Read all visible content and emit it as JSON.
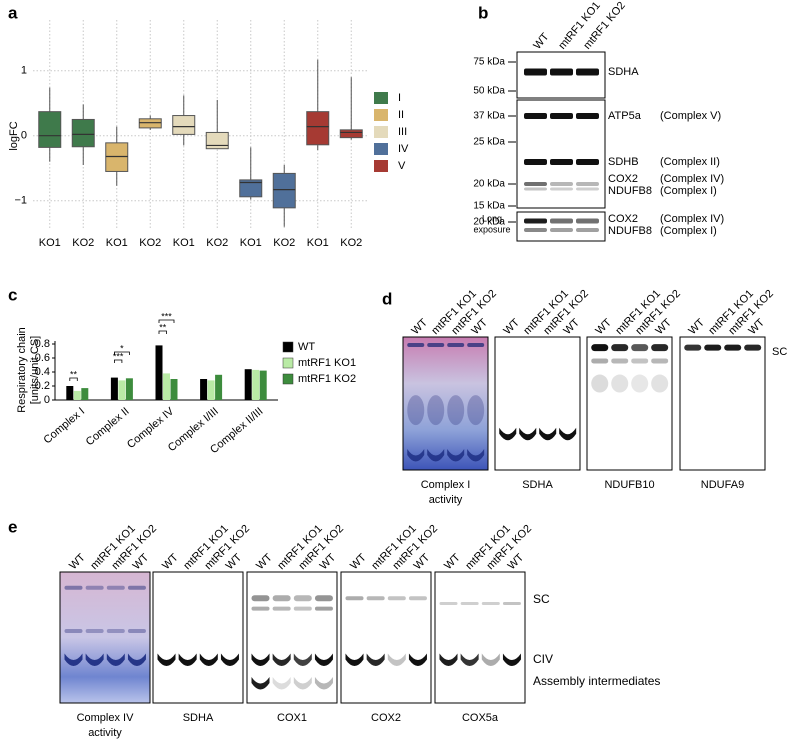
{
  "panel_labels": [
    "a",
    "b",
    "c",
    "d",
    "e"
  ],
  "chart_data": [
    {
      "type": "box",
      "ylabel": "logFC",
      "categories": [
        "KO1",
        "KO2"
      ],
      "ylim": [
        -1.42,
        1.78
      ],
      "yticks": [
        {
          "value": -1,
          "label": "−1"
        },
        0,
        1
      ],
      "grid": true,
      "series": [
        {
          "name": "I",
          "color": "#3f7a4b",
          "values": [
            {
              "low": -0.4,
              "q1": -0.18,
              "median": 0,
              "q3": 0.37,
              "high": 0.74
            },
            {
              "low": -0.45,
              "q1": -0.17,
              "median": 0.02,
              "q3": 0.25,
              "high": 0.48
            }
          ]
        },
        {
          "name": "II",
          "color": "#d9b56c",
          "values": [
            {
              "low": -0.77,
              "q1": -0.55,
              "median": -0.32,
              "q3": -0.11,
              "high": 0.14
            },
            {
              "low": 0.09,
              "q1": 0.12,
              "median": 0.2,
              "q3": 0.26,
              "high": 0.31
            }
          ]
        },
        {
          "name": "III",
          "color": "#e4dabb",
          "values": [
            {
              "low": -0.15,
              "q1": 0.02,
              "median": 0.14,
              "q3": 0.31,
              "high": 0.62
            },
            {
              "low": -0.2,
              "q1": -0.2,
              "median": -0.15,
              "q3": 0.05,
              "high": 0.55
            }
          ]
        },
        {
          "name": "IV",
          "color": "#50709a",
          "values": [
            {
              "low": -0.98,
              "q1": -0.94,
              "median": -0.72,
              "q3": -0.68,
              "high": -0.18
            },
            {
              "low": -1.4,
              "q1": -1.11,
              "median": -0.83,
              "q3": -0.58,
              "high": -0.45
            }
          ]
        },
        {
          "name": "V",
          "color": "#a63a33",
          "values": [
            {
              "low": -0.22,
              "q1": -0.14,
              "median": 0.14,
              "q3": 0.37,
              "high": 1.17
            },
            {
              "low": -0.06,
              "q1": -0.03,
              "median": 0.05,
              "q3": 0.09,
              "high": 0.9
            }
          ]
        }
      ]
    },
    {
      "type": "bar",
      "ylabel": [
        "Respiratory chain",
        "[units/unit CS]"
      ],
      "categories": [
        "Complex I",
        "Complex II",
        "Complex IV",
        "Complex I/III",
        "Complex II/III"
      ],
      "ylim": [
        0,
        0.9
      ],
      "yticks": [
        0,
        0.2,
        0.4,
        0.6,
        0.8
      ],
      "series": [
        {
          "name": "WT",
          "color": "#000000",
          "values": [
            0.2,
            0.32,
            0.78,
            0.3,
            0.44
          ]
        },
        {
          "name": "mtRF1 KO1",
          "color": "#b9eaa5",
          "values": [
            0.13,
            0.28,
            0.38,
            0.28,
            0.43
          ]
        },
        {
          "name": "mtRF1 KO2",
          "color": "#3d8c3d",
          "values": [
            0.17,
            0.31,
            0.3,
            0.36,
            0.42
          ]
        }
      ],
      "annotations": [
        "**",
        "***",
        "*",
        "**",
        "***"
      ]
    }
  ],
  "blot_b": {
    "lanes": [
      "WT",
      "mtRF1 KO1",
      "mtRF1 KO2"
    ],
    "markers": [
      "75 kDa",
      "50 kDa",
      "37 kDa",
      "25 kDa",
      "20 kDa",
      "15 kDa",
      "20 kDa"
    ],
    "bands": [
      {
        "protein": "SDHA"
      },
      {
        "protein": "ATP5a",
        "complex": "(Complex V)"
      },
      {
        "protein": "SDHB",
        "complex": "(Complex II)"
      },
      {
        "protein": "COX2",
        "complex": "(Complex IV)"
      },
      {
        "protein": "NDUFB8",
        "complex": "(Complex I)"
      },
      {
        "protein": "COX2",
        "complex": "(Complex IV)"
      },
      {
        "protein": "NDUFB8",
        "complex": "(Complex I)"
      }
    ],
    "long_exposure": [
      "Long",
      "exposure"
    ]
  },
  "gels_d": {
    "lanes": [
      "WT",
      "mtRF1 KO1",
      "mtRF1 KO2",
      "WT"
    ],
    "captions": [
      [
        "Complex I",
        "activity"
      ],
      [
        "SDHA"
      ],
      [
        "NDUFB10"
      ],
      [
        "NDUFA9"
      ]
    ],
    "side_labels": [
      "SC"
    ]
  },
  "gels_e": {
    "lanes": [
      "WT",
      "mtRF1 KO1",
      "mtRF1 KO2",
      "WT"
    ],
    "captions": [
      [
        "Complex IV",
        "activity"
      ],
      [
        "SDHA"
      ],
      [
        "COX1"
      ],
      [
        "COX2"
      ],
      [
        "COX5a"
      ]
    ],
    "side_labels": [
      "SC",
      "CIV",
      "Assembly intermediates"
    ]
  }
}
